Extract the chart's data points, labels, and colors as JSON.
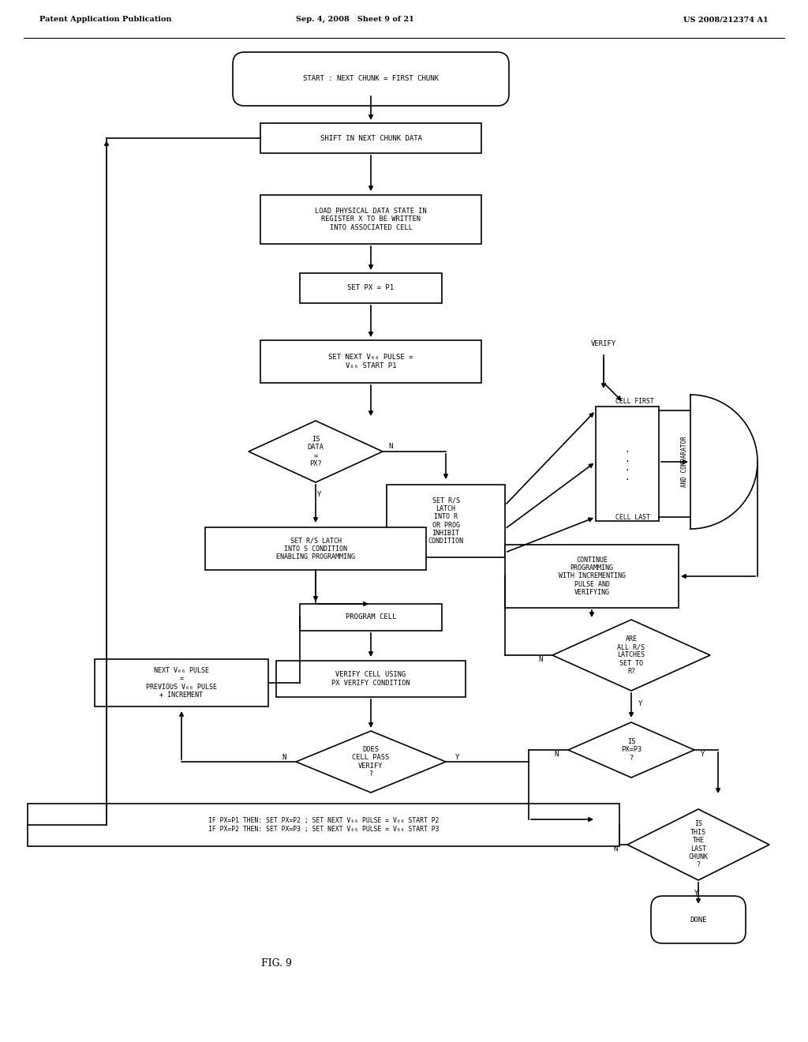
{
  "title_left": "Patent Application Publication",
  "title_center": "Sep. 4, 2008   Sheet 9 of 21",
  "title_right": "US 2008/212374 A1",
  "fig_label": "FIG. 9",
  "background": "#ffffff",
  "line_color": "#000000",
  "text_color": "#000000"
}
